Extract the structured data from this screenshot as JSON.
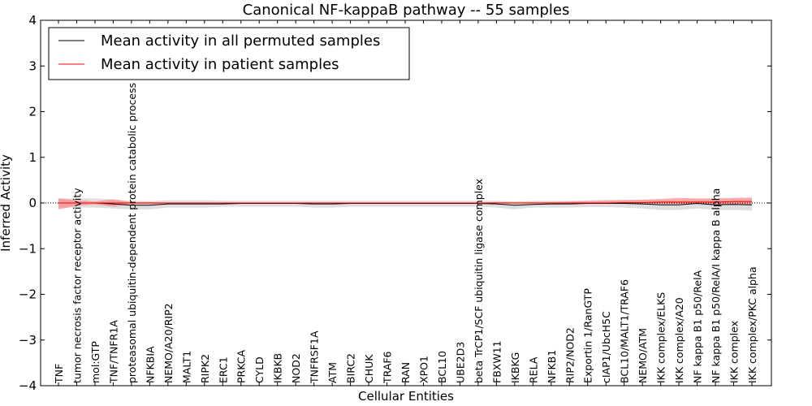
{
  "chart_data": {
    "type": "line",
    "title": "Canonical NF-kappaB pathway -- 55 samples",
    "xlabel": "Cellular Entities",
    "ylabel": "Inferred Activity",
    "ylim": [
      -4,
      4
    ],
    "yticks": [
      -4,
      -3,
      -2,
      -1,
      0,
      1,
      2,
      3,
      4
    ],
    "ytick_labels": [
      "−4",
      "−3",
      "−2",
      "−1",
      "0",
      "1",
      "2",
      "3",
      "4"
    ],
    "grid": false,
    "legend_position": "top-left",
    "colors": {
      "permuted_line": "#000000",
      "patient_line": "#ff0000",
      "permuted_band": "#c8c8c8",
      "patient_band": "#ff7f7f"
    },
    "categories": [
      "TNF",
      "tumor necrosis factor receptor activity",
      "mol:GTP",
      "TNF/TNFR1A",
      "proteasomal ubiquitin-dependent protein catabolic process",
      "NFKBIA",
      "NEMO/A20/RIP2",
      "MALT1",
      "RIPK2",
      "ERC1",
      "PRKCA",
      "CYLD",
      "IKBKB",
      "NOD2",
      "TNFRSF1A",
      "ATM",
      "BIRC2",
      "CHUK",
      "TRAF6",
      "RAN",
      "XPO1",
      "BCL10",
      "UBE2D3",
      "beta TrCP1/SCF ubiquitin ligase complex",
      "FBXW11",
      "IKBKG",
      "RELA",
      "NFKB1",
      "RIP2/NOD2",
      "Exportin 1/RanGTP",
      "cIAP1/UbcH5C",
      "BCL10/MALT1/TRAF6",
      "NEMO/ATM",
      "IKK complex/ELKS",
      "IKK complex/A20",
      "NF kappa B1 p50/RelA",
      "NF kappa B1 p50/RelA/I kappa B alpha",
      "IKK complex",
      "IKK complex/PKC alpha"
    ],
    "series": [
      {
        "name": "Mean activity in all permuted samples",
        "values": [
          0.0,
          0.0,
          0.0,
          -0.02,
          -0.05,
          -0.05,
          -0.02,
          -0.02,
          -0.02,
          -0.02,
          -0.01,
          -0.01,
          -0.01,
          -0.01,
          -0.02,
          -0.02,
          -0.01,
          -0.01,
          -0.01,
          -0.01,
          -0.01,
          -0.01,
          -0.01,
          -0.01,
          -0.02,
          -0.05,
          -0.03,
          -0.02,
          -0.02,
          -0.01,
          -0.01,
          -0.01,
          -0.02,
          -0.04,
          -0.04,
          -0.01,
          -0.04,
          -0.03,
          -0.04
        ],
        "lower": [
          -0.1,
          -0.1,
          -0.1,
          -0.12,
          -0.14,
          -0.14,
          -0.1,
          -0.1,
          -0.1,
          -0.08,
          -0.08,
          -0.08,
          -0.08,
          -0.08,
          -0.1,
          -0.1,
          -0.08,
          -0.08,
          -0.08,
          -0.08,
          -0.08,
          -0.08,
          -0.08,
          -0.08,
          -0.1,
          -0.14,
          -0.1,
          -0.1,
          -0.1,
          -0.09,
          -0.09,
          -0.1,
          -0.12,
          -0.15,
          -0.15,
          -0.12,
          -0.15,
          -0.15,
          -0.17
        ],
        "upper": [
          0.1,
          0.1,
          0.1,
          0.08,
          0.04,
          0.04,
          0.06,
          0.06,
          0.06,
          0.05,
          0.05,
          0.05,
          0.05,
          0.05,
          0.05,
          0.05,
          0.05,
          0.05,
          0.05,
          0.05,
          0.05,
          0.05,
          0.05,
          0.05,
          0.05,
          0.03,
          0.05,
          0.05,
          0.05,
          0.06,
          0.07,
          0.07,
          0.07,
          0.06,
          0.06,
          0.08,
          0.07,
          0.08,
          0.08
        ]
      },
      {
        "name": "Mean activity in patient samples",
        "values": [
          0.0,
          0.0,
          0.0,
          0.0,
          0.0,
          0.0,
          0.0,
          0.0,
          0.0,
          0.0,
          0.0,
          0.0,
          0.0,
          0.0,
          0.0,
          0.0,
          0.0,
          0.0,
          0.0,
          0.0,
          0.0,
          0.0,
          0.0,
          0.0,
          0.0,
          0.0,
          0.0,
          0.0,
          0.0,
          0.0,
          0.0,
          0.01,
          0.01,
          0.02,
          0.02,
          0.02,
          0.02,
          0.03,
          0.03
        ],
        "lower": [
          -0.14,
          -0.06,
          -0.03,
          -0.08,
          -0.02,
          -0.02,
          -0.01,
          -0.01,
          -0.01,
          -0.01,
          -0.01,
          -0.01,
          -0.01,
          -0.01,
          -0.01,
          -0.01,
          -0.01,
          -0.01,
          -0.01,
          -0.01,
          -0.01,
          -0.01,
          -0.01,
          -0.01,
          -0.01,
          -0.01,
          -0.01,
          -0.01,
          -0.01,
          -0.01,
          -0.01,
          -0.01,
          -0.01,
          -0.02,
          -0.02,
          -0.02,
          -0.03,
          -0.03,
          -0.03
        ],
        "upper": [
          0.1,
          0.06,
          0.03,
          0.08,
          0.02,
          0.02,
          0.01,
          0.01,
          0.01,
          0.01,
          0.01,
          0.01,
          0.01,
          0.01,
          0.01,
          0.01,
          0.01,
          0.01,
          0.01,
          0.01,
          0.01,
          0.01,
          0.01,
          0.01,
          0.02,
          0.02,
          0.02,
          0.02,
          0.03,
          0.04,
          0.05,
          0.06,
          0.07,
          0.09,
          0.11,
          0.1,
          0.1,
          0.11,
          0.12
        ]
      }
    ]
  }
}
